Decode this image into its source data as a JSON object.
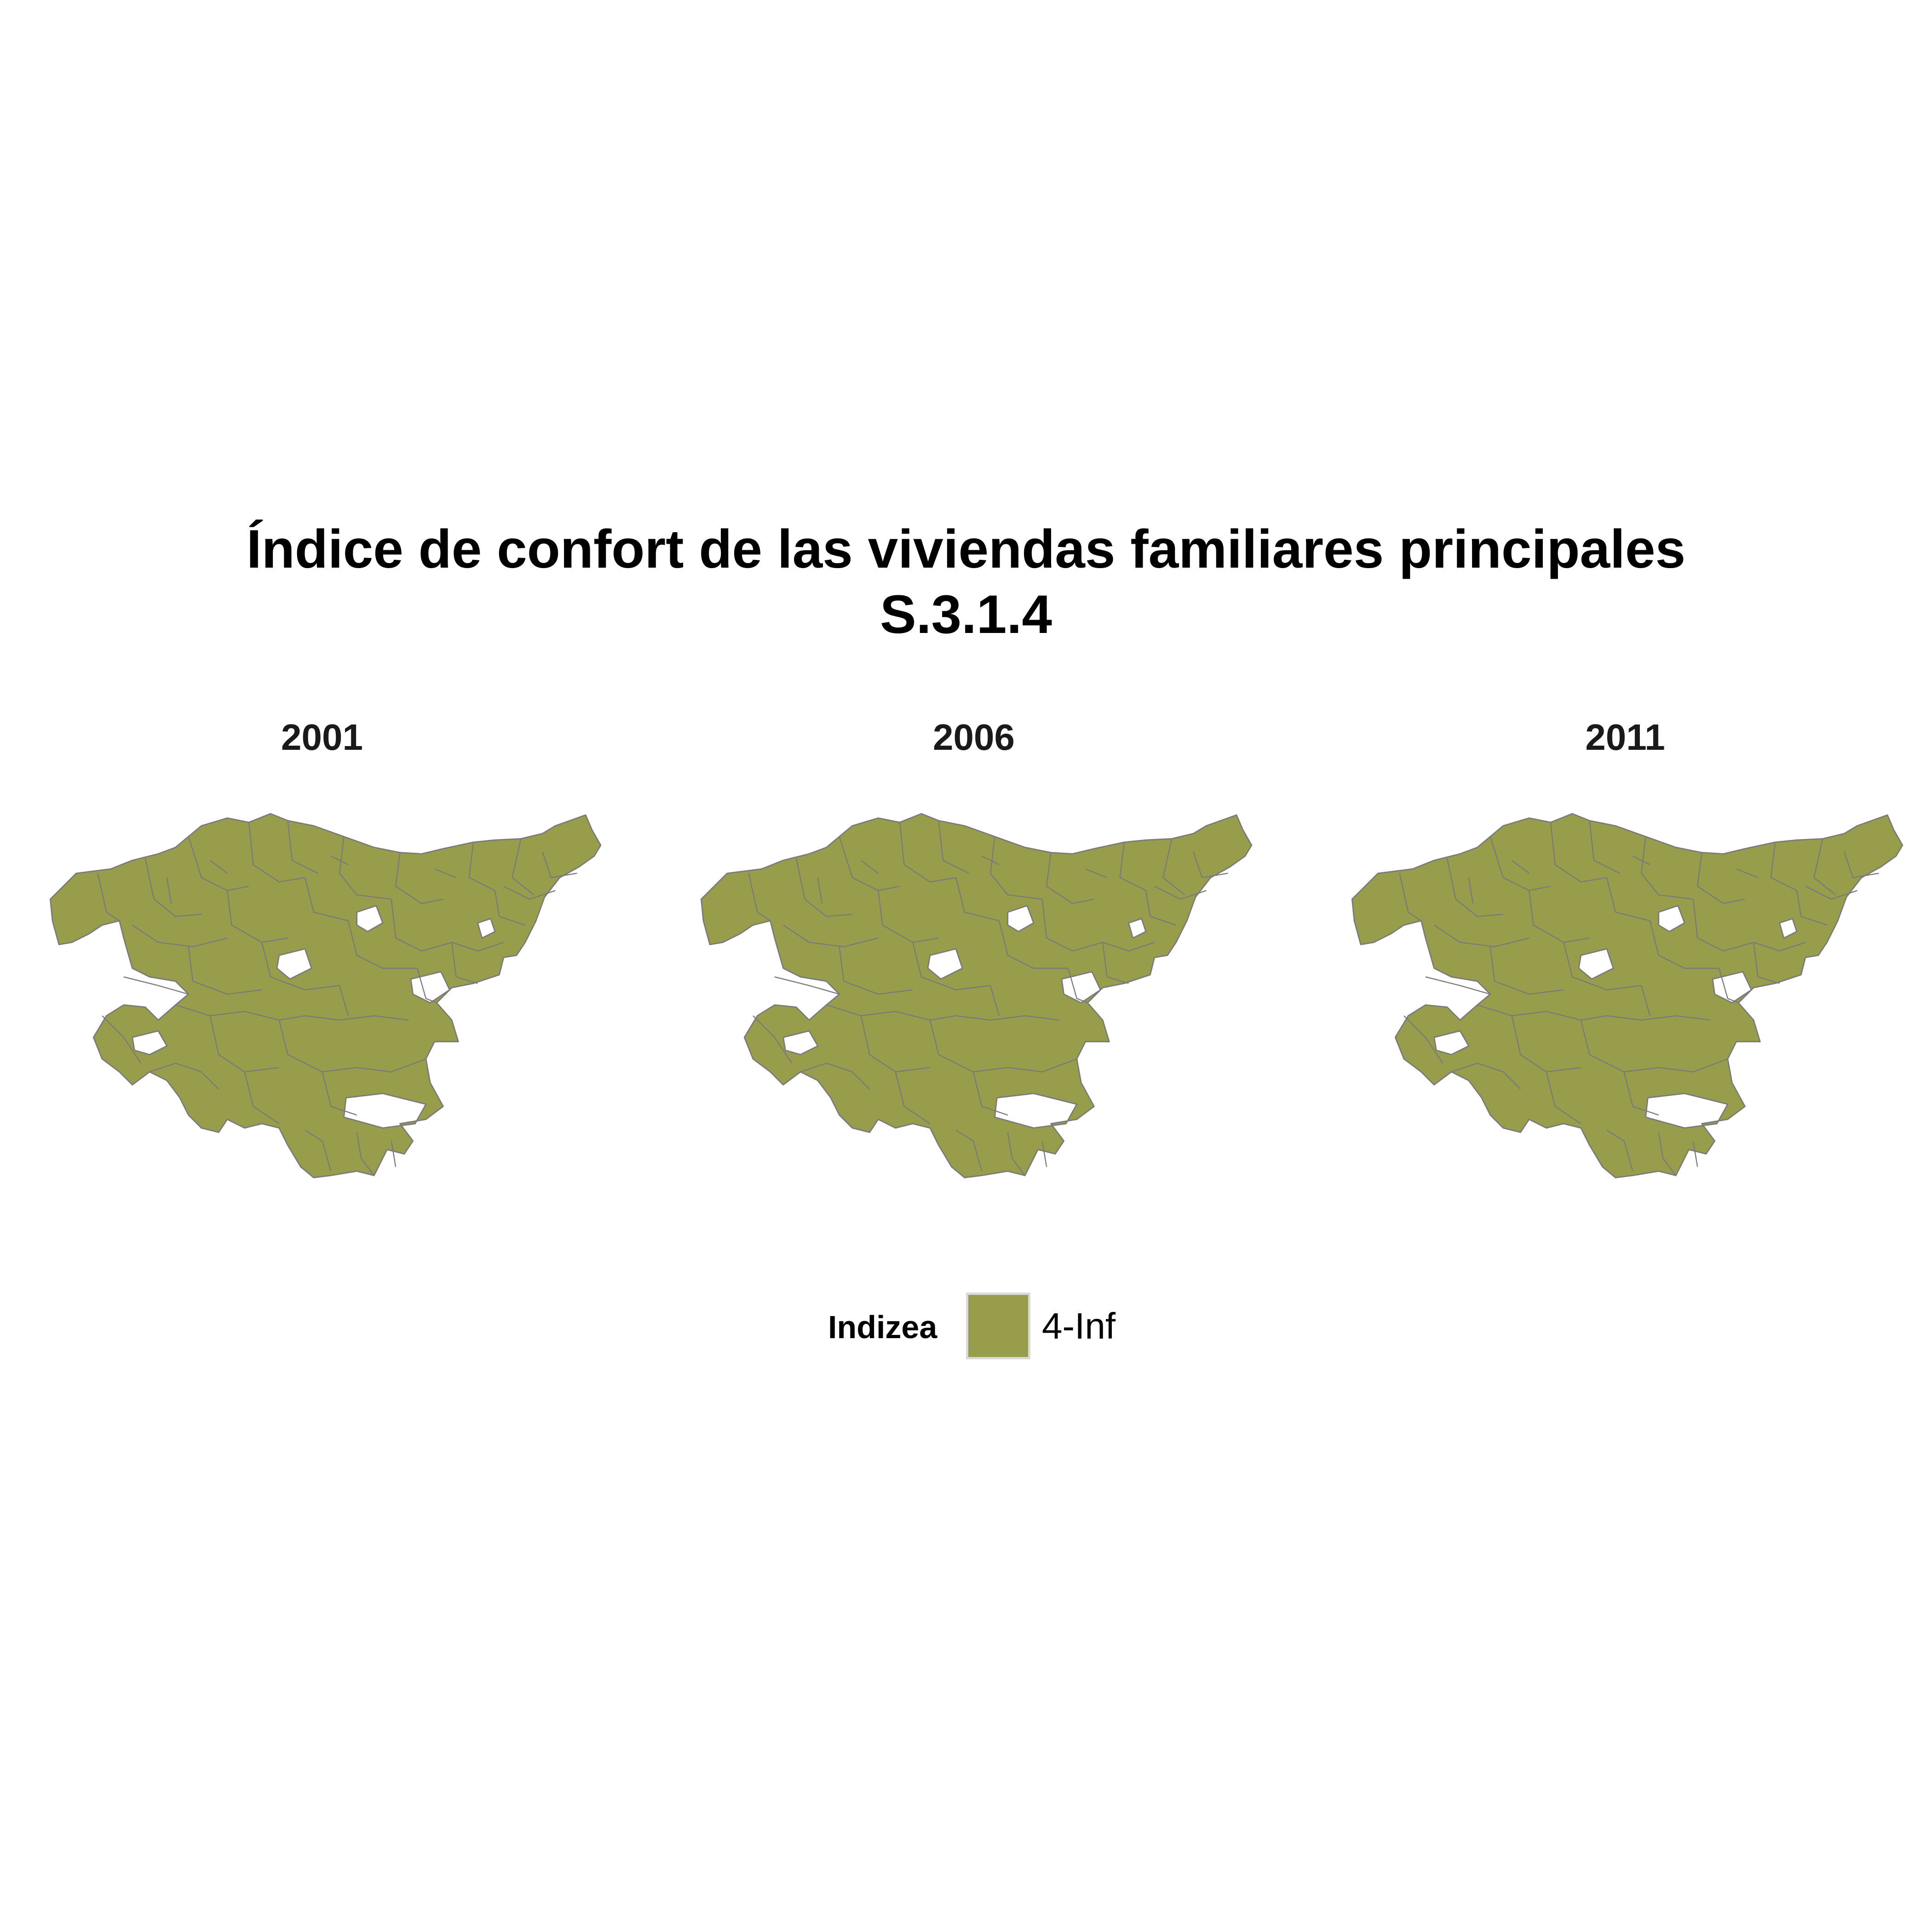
{
  "title": {
    "line1": "Índice de confort de las viviendas familiares principales",
    "line2": "S.3.1.4"
  },
  "facets": [
    {
      "year": "2001"
    },
    {
      "year": "2006"
    },
    {
      "year": "2011"
    }
  ],
  "legend": {
    "title": "Indizea",
    "items": [
      {
        "label": "4-Inf",
        "color": "#979d4b"
      }
    ]
  },
  "colors": {
    "fill": "#979d4b",
    "border": "#7a7a7a",
    "background": "#ffffff"
  }
}
